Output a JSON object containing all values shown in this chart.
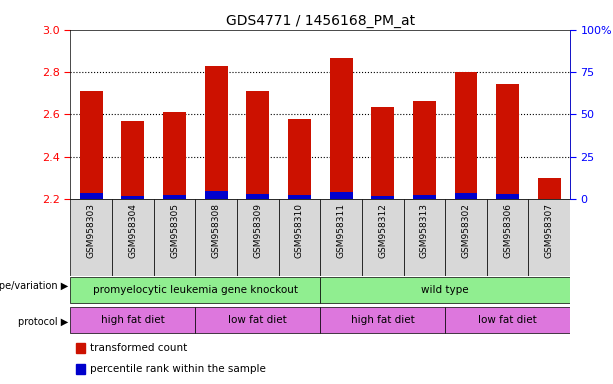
{
  "title": "GDS4771 / 1456168_PM_at",
  "samples": [
    "GSM958303",
    "GSM958304",
    "GSM958305",
    "GSM958308",
    "GSM958309",
    "GSM958310",
    "GSM958311",
    "GSM958312",
    "GSM958313",
    "GSM958302",
    "GSM958306",
    "GSM958307"
  ],
  "transformed_count": [
    2.71,
    2.57,
    2.61,
    2.83,
    2.71,
    2.58,
    2.865,
    2.635,
    2.665,
    2.8,
    2.745,
    2.3
  ],
  "percentile_rank": [
    3.5,
    2.0,
    2.5,
    4.5,
    3.0,
    2.5,
    4.0,
    2.0,
    2.5,
    3.5,
    3.0,
    0.0
  ],
  "ymin": 2.2,
  "ymax": 3.0,
  "y_ticks": [
    2.2,
    2.4,
    2.6,
    2.8,
    3.0
  ],
  "y2_ticks": [
    0,
    25,
    50,
    75,
    100
  ],
  "y2_labels": [
    "0",
    "25",
    "50",
    "75",
    "100%"
  ],
  "bar_color_red": "#CC1100",
  "bar_color_blue": "#0000CC",
  "genotype_groups": [
    {
      "label": "promyelocytic leukemia gene knockout",
      "start": 0,
      "end": 6
    },
    {
      "label": "wild type",
      "start": 6,
      "end": 12
    }
  ],
  "protocol_groups": [
    {
      "label": "high fat diet",
      "start": 0,
      "end": 3
    },
    {
      "label": "low fat diet",
      "start": 3,
      "end": 6
    },
    {
      "label": "high fat diet",
      "start": 6,
      "end": 9
    },
    {
      "label": "low fat diet",
      "start": 9,
      "end": 12
    }
  ],
  "genotype_label": "genotype/variation",
  "protocol_label": "protocol",
  "genotype_color": "#90EE90",
  "protocol_color": "#DD77DD",
  "xtick_bg_color": "#D8D8D8",
  "legend_items": [
    {
      "label": "transformed count",
      "color": "#CC1100"
    },
    {
      "label": "percentile rank within the sample",
      "color": "#0000CC"
    }
  ],
  "fig_width": 6.13,
  "fig_height": 3.84,
  "dpi": 100
}
